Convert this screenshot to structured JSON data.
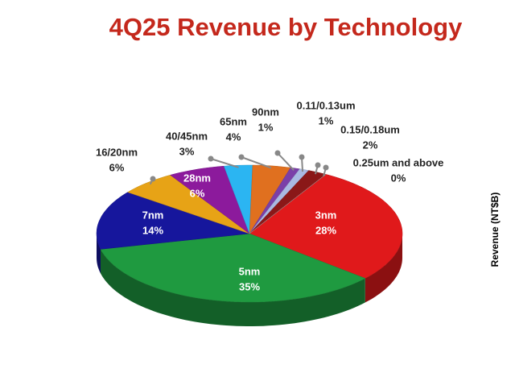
{
  "chart_data": {
    "type": "pie",
    "title": "4Q25 Revenue by Technology",
    "y_axis_label": "Revenue (NT$B)",
    "categories": [
      "3nm",
      "5nm",
      "7nm",
      "16/20nm",
      "28nm",
      "40/45nm",
      "65nm",
      "90nm",
      "0.11/0.13um",
      "0.15/0.18um",
      "0.25um and above"
    ],
    "values": [
      28,
      35,
      14,
      6,
      6,
      3,
      4,
      1,
      1,
      2,
      0
    ],
    "value_labels": [
      "28%",
      "35%",
      "14%",
      "6%",
      "6%",
      "3%",
      "4%",
      "1%",
      "1%",
      "2%",
      "0%"
    ],
    "colors": [
      "#e0191b",
      "#1f9a40",
      "#16169c",
      "#e7a316",
      "#8c1a9c",
      "#2bb5f2",
      "#e0701f",
      "#7b3fa8",
      "#a9b9e2",
      "#8a1818",
      "#bdbdbd"
    ]
  }
}
